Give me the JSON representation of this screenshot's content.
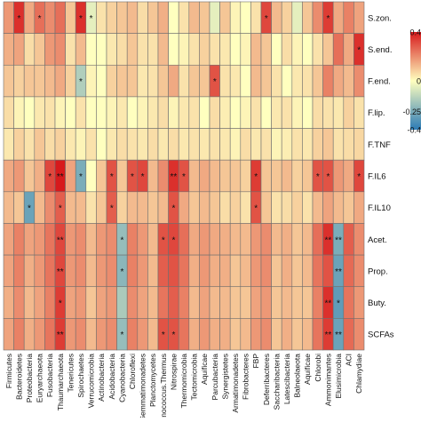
{
  "chart_data": {
    "type": "heatmap",
    "title": "",
    "xlabel": "",
    "ylabel": "",
    "x_categories": [
      "Firmicutes",
      "Bacteroidetes",
      "Proteobacteria",
      "Euryarchaeota",
      "Fusobacteria",
      "Thaumarchaeota",
      "Tenericutes",
      "Spirochaetes",
      "Verrucomicrobia",
      "Actinobacteria",
      "Acidobacteria",
      "Cyanobacteria",
      "Chloroflexi",
      "Gemmatimonadetes",
      "Planctomycetes",
      "Deinococcus.Thermus",
      "Nitrospirae",
      "Thermomicrobia",
      "Tectomicrobia",
      "Aquificae",
      "Parcubacteria",
      "Synergistetes",
      "Armatimonadetes",
      "Fibrobacteres",
      "FBP",
      "Deferribacteres",
      "Saccharibacteria",
      "Latescibacteria",
      "Balneolaeota",
      "Aquificae",
      "Chlorobi",
      "Ammonimantes",
      "Elusimicrobia",
      "ACI",
      "Chlamydiae"
    ],
    "y_categories": [
      "S.zon.",
      "S.end.",
      "F.end.",
      "F.lip.",
      "F.TNF",
      "F.IL6",
      "F.IL10",
      "Acet.",
      "Prop.",
      "Buty.",
      "SCFAs"
    ],
    "colorbar": {
      "range": [
        -0.4,
        0.4
      ],
      "ticks": [
        "0.4",
        "0",
        "-0.25",
        "-0.4"
      ],
      "tick_values": [
        0.4,
        0,
        -0.25,
        -0.4
      ],
      "colors": {
        "high": "#d7191c",
        "mid": "#ffffbf",
        "low": "#2c7bb6"
      }
    },
    "values": [
      [
        0.18,
        0.36,
        0.15,
        0.25,
        0.2,
        0.25,
        0.1,
        0.36,
        -0.05,
        0.05,
        0.08,
        0.1,
        0.12,
        0.06,
        0.1,
        0.14,
        0.0,
        0.05,
        0.12,
        0.1,
        -0.05,
        0.1,
        0.02,
        0.0,
        0.05,
        0.32,
        0.12,
        0.08,
        -0.05,
        0.1,
        0.2,
        0.34,
        0.15,
        0.22,
        0.16
      ],
      [
        0.14,
        0.16,
        0.06,
        0.1,
        0.18,
        0.2,
        0.05,
        0.12,
        0.0,
        0.0,
        0.04,
        0.06,
        0.1,
        0.05,
        0.05,
        0.12,
        0.0,
        0.02,
        0.05,
        0.08,
        0.05,
        0.04,
        0.0,
        0.02,
        0.12,
        0.1,
        0.0,
        0.06,
        0.02,
        0.0,
        0.05,
        0.1,
        0.25,
        0.15,
        0.36
      ],
      [
        0.1,
        0.08,
        0.1,
        0.1,
        0.12,
        0.15,
        0.08,
        -0.15,
        0.02,
        0.0,
        0.08,
        0.1,
        0.1,
        0.04,
        0.05,
        0.1,
        0.15,
        0.05,
        0.1,
        0.1,
        0.3,
        0.05,
        0.04,
        0.0,
        0.12,
        0.1,
        0.05,
        0.0,
        0.04,
        0.05,
        0.1,
        0.22,
        0.15,
        0.12,
        0.2
      ],
      [
        0.06,
        0.02,
        0.0,
        0.04,
        0.05,
        0.02,
        0.0,
        0.05,
        0.0,
        0.0,
        0.02,
        0.04,
        0.0,
        0.02,
        0.04,
        0.06,
        0.02,
        0.04,
        0.05,
        0.0,
        0.06,
        0.03,
        0.0,
        0.02,
        0.05,
        0.0,
        0.04,
        0.05,
        0.02,
        0.0,
        0.06,
        0.05,
        0.04,
        0.08,
        0.05
      ],
      [
        0.04,
        0.08,
        0.05,
        0.1,
        0.06,
        0.08,
        0.04,
        0.02,
        0.05,
        0.0,
        0.04,
        0.06,
        0.05,
        0.04,
        0.06,
        0.04,
        0.06,
        0.04,
        0.05,
        0.04,
        0.05,
        0.04,
        0.02,
        0.06,
        0.04,
        0.05,
        0.02,
        0.03,
        0.05,
        0.04,
        0.08,
        0.1,
        0.05,
        0.06,
        0.07
      ],
      [
        0.15,
        0.18,
        0.1,
        0.14,
        0.32,
        0.4,
        0.16,
        -0.25,
        0.0,
        0.1,
        0.3,
        0.1,
        0.3,
        0.32,
        0.12,
        0.2,
        0.36,
        0.3,
        0.12,
        0.15,
        0.12,
        0.1,
        0.1,
        0.08,
        0.34,
        0.1,
        0.1,
        0.12,
        0.08,
        0.1,
        0.3,
        0.3,
        0.18,
        0.15,
        0.32
      ],
      [
        0.12,
        0.1,
        -0.28,
        0.12,
        0.2,
        0.28,
        0.12,
        0.12,
        0.05,
        0.1,
        0.28,
        0.08,
        0.12,
        0.12,
        0.1,
        0.12,
        0.3,
        0.15,
        0.1,
        0.12,
        0.1,
        0.06,
        0.08,
        0.05,
        0.3,
        0.1,
        0.05,
        0.06,
        0.08,
        0.05,
        0.12,
        0.16,
        0.12,
        0.1,
        0.15
      ],
      [
        0.16,
        0.22,
        0.16,
        0.18,
        0.24,
        0.32,
        0.18,
        0.2,
        0.12,
        0.18,
        0.2,
        -0.2,
        0.22,
        0.18,
        0.12,
        0.3,
        0.32,
        0.25,
        0.15,
        0.18,
        0.15,
        0.14,
        0.12,
        0.12,
        0.18,
        0.2,
        0.12,
        0.14,
        0.1,
        0.12,
        0.25,
        0.36,
        -0.25,
        0.28,
        0.2
      ],
      [
        0.16,
        0.22,
        0.14,
        0.18,
        0.24,
        0.32,
        0.18,
        0.2,
        0.12,
        0.18,
        0.2,
        -0.22,
        0.22,
        0.18,
        0.12,
        0.28,
        0.3,
        0.24,
        0.14,
        0.18,
        0.14,
        0.14,
        0.1,
        0.12,
        0.18,
        0.2,
        0.1,
        0.14,
        0.1,
        0.12,
        0.24,
        0.3,
        -0.28,
        0.26,
        0.2
      ],
      [
        0.14,
        0.2,
        0.12,
        0.16,
        0.22,
        0.34,
        0.16,
        0.18,
        0.1,
        0.16,
        0.18,
        -0.16,
        0.2,
        0.16,
        0.12,
        0.24,
        0.28,
        0.22,
        0.12,
        0.16,
        0.12,
        0.12,
        0.1,
        0.1,
        0.16,
        0.18,
        0.1,
        0.12,
        0.1,
        0.1,
        0.22,
        0.36,
        -0.3,
        0.24,
        0.18
      ],
      [
        0.16,
        0.22,
        0.14,
        0.18,
        0.24,
        0.34,
        0.18,
        0.2,
        0.12,
        0.18,
        0.2,
        -0.2,
        0.22,
        0.18,
        0.12,
        0.3,
        0.3,
        0.24,
        0.14,
        0.18,
        0.14,
        0.14,
        0.1,
        0.12,
        0.18,
        0.2,
        0.1,
        0.14,
        0.1,
        0.12,
        0.24,
        0.34,
        -0.28,
        0.26,
        0.2
      ]
    ],
    "significance": [
      [
        "",
        "*",
        "",
        "*",
        "",
        "",
        "",
        "*",
        "*",
        "",
        "",
        "",
        "",
        "",
        "",
        "",
        "",
        "",
        "",
        "",
        "",
        "",
        "",
        "",
        "",
        "*",
        "",
        "",
        "",
        "",
        "",
        "*",
        "",
        "",
        ""
      ],
      [
        "",
        "",
        "",
        "",
        "",
        "",
        "",
        "",
        "",
        "",
        "",
        "",
        "",
        "",
        "",
        "",
        "",
        "",
        "",
        "",
        "",
        "",
        "",
        "",
        "",
        "",
        "",
        "",
        "",
        "",
        "",
        "",
        "",
        "",
        "*"
      ],
      [
        "",
        "",
        "",
        "",
        "",
        "",
        "",
        "*",
        "",
        "",
        "",
        "",
        "",
        "",
        "",
        "",
        "",
        "",
        "",
        "",
        "*",
        "",
        "",
        "",
        "",
        "",
        "",
        "",
        "",
        "",
        "",
        "",
        "",
        "",
        ""
      ],
      [
        "",
        "",
        "",
        "",
        "",
        "",
        "",
        "",
        "",
        "",
        "",
        "",
        "",
        "",
        "",
        "",
        "",
        "",
        "",
        "",
        "",
        "",
        "",
        "",
        "",
        "",
        "",
        "",
        "",
        "",
        "",
        "",
        "",
        "",
        ""
      ],
      [
        "",
        "",
        "",
        "",
        "",
        "",
        "",
        "",
        "",
        "",
        "",
        "",
        "",
        "",
        "",
        "",
        "",
        "",
        "",
        "",
        "",
        "",
        "",
        "",
        "",
        "",
        "",
        "",
        "",
        "",
        "",
        "",
        "",
        "",
        ""
      ],
      [
        "",
        "",
        "",
        "",
        "*",
        "**",
        "",
        "*",
        "",
        "",
        "*",
        "",
        "*",
        "*",
        "",
        "",
        "**",
        "*",
        "",
        "",
        "",
        "",
        "",
        "",
        "*",
        "",
        "",
        "",
        "",
        "",
        "*",
        "*",
        "",
        "",
        "*"
      ],
      [
        "",
        "",
        "*",
        "",
        "",
        "*",
        "",
        "",
        "",
        "",
        "*",
        "",
        "",
        "",
        "",
        "",
        "*",
        "",
        "",
        "",
        "",
        "",
        "",
        "",
        "*",
        "",
        "",
        "",
        "",
        "",
        "",
        "",
        "",
        "",
        ""
      ],
      [
        "",
        "",
        "",
        "",
        "",
        "**",
        "",
        "",
        "",
        "",
        "",
        "*",
        "",
        "",
        "",
        "*",
        "*",
        "",
        "",
        "",
        "",
        "",
        "",
        "",
        "",
        "",
        "",
        "",
        "",
        "",
        "",
        "**",
        "**",
        "",
        ""
      ],
      [
        "",
        "",
        "",
        "",
        "",
        "**",
        "",
        "",
        "",
        "",
        "",
        "*",
        "",
        "",
        "",
        "",
        "",
        "",
        "",
        "",
        "",
        "",
        "",
        "",
        "",
        "",
        "",
        "",
        "",
        "",
        "",
        "",
        "**",
        "",
        ""
      ],
      [
        "",
        "",
        "",
        "",
        "",
        "*",
        "",
        "",
        "",
        "",
        "",
        "",
        "",
        "",
        "",
        "",
        "",
        "",
        "",
        "",
        "",
        "",
        "",
        "",
        "",
        "",
        "",
        "",
        "",
        "",
        "",
        "**",
        "*",
        "",
        ""
      ],
      [
        "",
        "",
        "",
        "",
        "",
        "**",
        "",
        "",
        "",
        "",
        "",
        "*",
        "",
        "",
        "",
        "*",
        "*",
        "",
        "",
        "",
        "",
        "",
        "",
        "",
        "",
        "",
        "",
        "",
        "",
        "",
        "",
        "**",
        "**",
        "",
        ""
      ]
    ]
  }
}
